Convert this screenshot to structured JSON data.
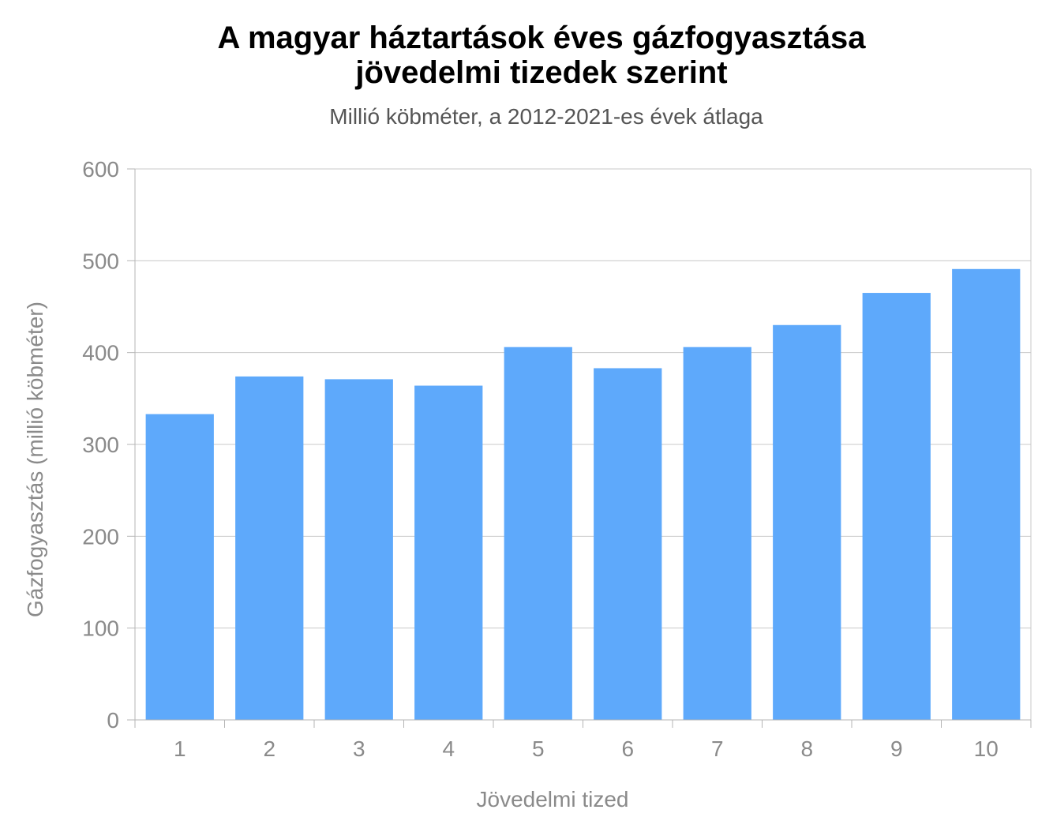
{
  "chart_data": {
    "type": "bar",
    "title_line1": "A magyar háztartások éves gázfogyasztása",
    "title_line2": "jövedelmi tizedek szerint",
    "subtitle": "Millió köbméter, a 2012-2021-es évek átlaga",
    "xlabel": "Jövedelmi tized",
    "ylabel": "Gázfogyasztás (millió köbméter)",
    "categories": [
      "1",
      "2",
      "3",
      "4",
      "5",
      "6",
      "7",
      "8",
      "9",
      "10"
    ],
    "values": [
      333,
      374,
      371,
      364,
      406,
      383,
      406,
      430,
      465,
      491
    ],
    "ylim": [
      0,
      600
    ],
    "yticks": [
      0,
      100,
      200,
      300,
      400,
      500,
      600
    ],
    "grid": true,
    "bar_color": "#5ea9fb"
  }
}
